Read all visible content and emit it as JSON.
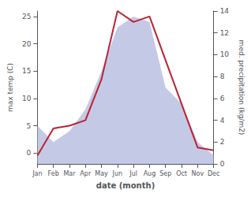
{
  "chart_data": {
    "type": "line",
    "categories": [
      "Jan",
      "Feb",
      "Mar",
      "Apr",
      "May",
      "Jun",
      "Jul",
      "Aug",
      "Sep",
      "Oct",
      "Nov",
      "Dec"
    ],
    "xlabel": "date (month)",
    "ylabel": "max temp (C)",
    "y2label": "med. precipitation (kg/m2)",
    "series": [
      {
        "type": "area",
        "axis": "y2",
        "color": "#b0b8dd",
        "values": [
          3.5,
          2.0,
          3.0,
          5.0,
          8.5,
          12.5,
          13.5,
          13.0,
          7.0,
          5.5,
          2.0,
          0.8
        ]
      },
      {
        "type": "line",
        "color": "#bb2233",
        "values": [
          -0.5,
          4.5,
          5.0,
          6.0,
          13.5,
          26.0,
          24.0,
          25.0,
          17.0,
          9.0,
          1.0,
          0.5
        ]
      }
    ],
    "ylim": [
      -2,
      26
    ],
    "yticks": [
      0,
      5,
      10,
      15,
      20,
      25
    ],
    "y2lim": [
      0,
      14
    ],
    "y2ticks": [
      0,
      2,
      4,
      6,
      8,
      10,
      12,
      14
    ],
    "grid": false
  }
}
